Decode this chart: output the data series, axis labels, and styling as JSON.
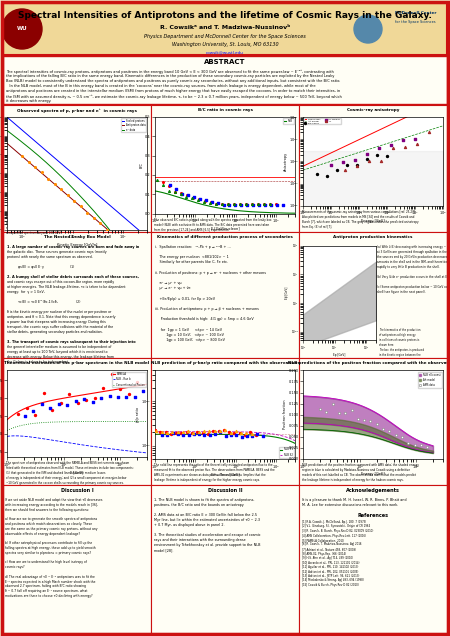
{
  "title": "Spectral Intensities of Antiprotons and the lifetime of Cosmic Rays in the Galaxy.",
  "authors": "R. Cowsikᵃ and T. Madziwa-Nussinovᵇ",
  "affiliation": "Physics Department and McDonnell Center for the Space Sciences",
  "university": "Washington University, St. Louis, MO 63130",
  "email": "cowsik@wustl.edu",
  "bg_color": "#f5e8c8",
  "header_bg": "#f0d898",
  "border_color": "#cc1111",
  "section_border": "#cc1111",
  "abstract_title": "ABSTRACT",
  "panel_titles": [
    "Observed spectra of p, p-bar and e⁺  in cosmic rays",
    "B/C ratio in cosmic rays",
    "Cosmic-ray anisotropy",
    "The Nested Leaky Box Model",
    "Kinematics of different production process of secondaries",
    "Antiproton production kinematics",
    "Theoretical estimates of the p-bar spectrum in the NLB model",
    "NLB prediction of p-bar/p ratio compared with the observations",
    "NLB predictions of the positron fraction compared with the observations"
  ],
  "discussion_title": "Discussion I",
  "discussion2_title": "Discussion II",
  "acknowledgements_title": "Acknowledgements",
  "references_title": "References"
}
